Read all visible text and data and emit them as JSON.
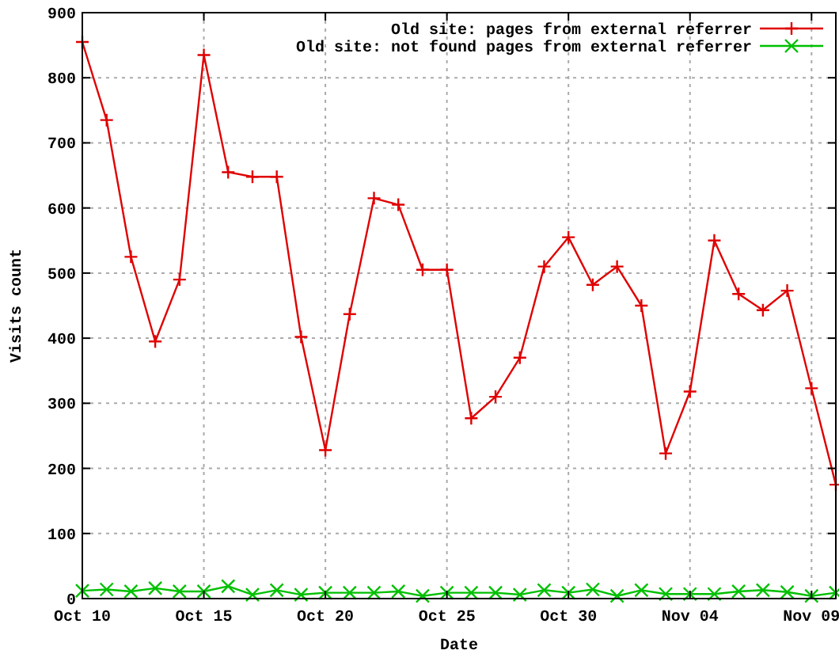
{
  "chart_data": {
    "type": "line",
    "xlabel": "Date",
    "ylabel": "Visits count",
    "x": [
      "--10-10",
      "--10-11",
      "--10-12",
      "--10-13",
      "--10-14",
      "--10-15",
      "--10-16",
      "--10-17",
      "--10-18",
      "--10-19",
      "--10-20",
      "--10-21",
      "--10-22",
      "--10-23",
      "--10-24",
      "--10-25",
      "--10-26",
      "--10-27",
      "--10-28",
      "--10-29",
      "--10-30",
      "--10-31",
      "--11-01",
      "--11-02",
      "--11-03",
      "--11-04",
      "--11-05",
      "--11-06",
      "--11-07",
      "--11-08",
      "--11-09",
      "--11-10"
    ],
    "series": [
      {
        "name": "Old site: pages from external referrer",
        "color": "#e00000",
        "marker": "cross",
        "values": [
          855,
          735,
          525,
          395,
          490,
          835,
          655,
          648,
          648,
          402,
          228,
          437,
          615,
          605,
          505,
          505,
          277,
          310,
          370,
          510,
          555,
          482,
          510,
          450,
          223,
          318,
          550,
          468,
          443,
          473,
          323,
          175
        ]
      },
      {
        "name": "Old site: not found pages from external referrer",
        "color": "#00c000",
        "marker": "x",
        "values": [
          12,
          14,
          11,
          16,
          11,
          11,
          19,
          6,
          13,
          6,
          9,
          9,
          9,
          11,
          4,
          9,
          9,
          9,
          6,
          13,
          9,
          14,
          4,
          13,
          7,
          7,
          7,
          11,
          13,
          10,
          4,
          9
        ]
      }
    ],
    "xlim": [
      "--10-10",
      "--11-10"
    ],
    "xticks": [
      {
        "value": "--10-10",
        "label": "Oct 10"
      },
      {
        "value": "--10-15",
        "label": "Oct 15"
      },
      {
        "value": "--10-20",
        "label": "Oct 20"
      },
      {
        "value": "--10-25",
        "label": "Oct 25"
      },
      {
        "value": "--10-30",
        "label": "Oct 30"
      },
      {
        "value": "--11-04",
        "label": "Nov 04"
      },
      {
        "value": "--11-09",
        "label": "Nov 09"
      }
    ],
    "ylim": [
      0,
      900
    ],
    "yticks": [
      0,
      100,
      200,
      300,
      400,
      500,
      600,
      700,
      800,
      900
    ],
    "grid": true,
    "legend": "top right",
    "line_style": "solid"
  }
}
